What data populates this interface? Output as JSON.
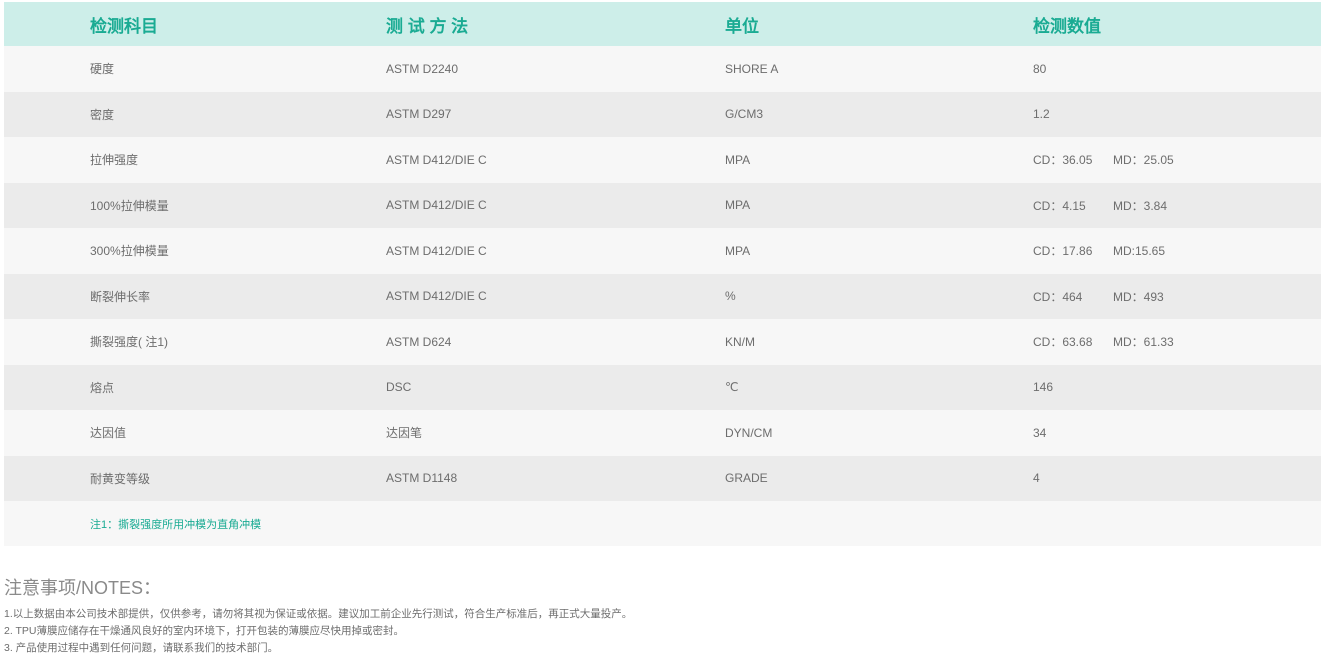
{
  "headers": [
    "检测科目",
    "测 试 方 法",
    "单位",
    "检测数值"
  ],
  "rows": [
    {
      "item": "硬度",
      "method": "ASTM D2240",
      "unit": "SHORE A",
      "cd": "80",
      "md": ""
    },
    {
      "item": "密度",
      "method": "ASTM D297",
      "unit": "G/CM3",
      "cd": "1.2",
      "md": ""
    },
    {
      "item": "拉伸强度",
      "method": "ASTM D412/DIE C",
      "unit": "MPA",
      "cd": "CD：36.05",
      "md": "MD：25.05"
    },
    {
      "item": "100%拉伸模量",
      "method": "ASTM D412/DIE C",
      "unit": "MPA",
      "cd": "CD：4.15",
      "md": "MD：3.84"
    },
    {
      "item": "300%拉伸模量",
      "method": "ASTM D412/DIE C",
      "unit": "MPA",
      "cd": "CD：17.86",
      "md": "MD:15.65"
    },
    {
      "item": "断裂伸长率",
      "method": "ASTM D412/DIE C",
      "unit": "%",
      "cd": "CD：464",
      "md": "MD：493"
    },
    {
      "item": "撕裂强度( 注1)",
      "method": "ASTM D624",
      "unit": "KN/M",
      "cd": "CD：63.68",
      "md": "MD：61.33"
    },
    {
      "item": "熔点",
      "method": "DSC",
      "unit": "℃",
      "cd": "146",
      "md": ""
    },
    {
      "item": "达因值",
      "method": "达因笔",
      "unit": "DYN/CM",
      "cd": "34",
      "md": ""
    },
    {
      "item": "耐黄变等级",
      "method": "ASTM D1148",
      "unit": "GRADE",
      "cd": "4",
      "md": ""
    }
  ],
  "footnote": "注1：撕裂强度所用冲模为直角冲模",
  "notes": {
    "title": "注意事项/NOTES：",
    "items": [
      "1.以上数据由本公司技术部提供，仅供参考，请勿将其视为保证或依据。建议加工前企业先行测试，符合生产标准后，再正式大量投产。",
      "2. TPU薄膜应储存在干燥通风良好的室内环境下，打开包装的薄膜应尽快用掉或密封。",
      "3. 产品使用过程中遇到任何问题，请联系我们的技术部门。"
    ]
  },
  "colors": {
    "accent": "#1aab93",
    "header_bg": "#cdeee9",
    "row_light": "#f7f7f7",
    "row_dark": "#ebebeb"
  }
}
